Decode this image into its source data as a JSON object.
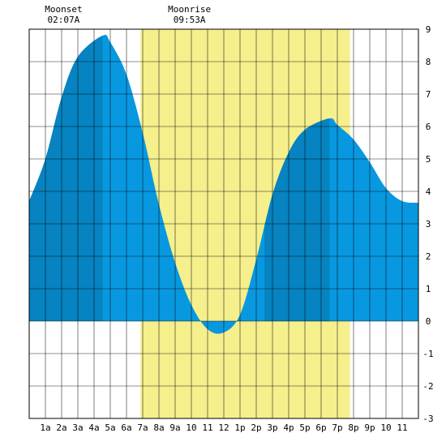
{
  "chart_data": {
    "type": "area",
    "title": "",
    "xlabel": "",
    "ylabel": "",
    "x_ticks": [
      "1a",
      "2a",
      "3a",
      "4a",
      "5a",
      "6a",
      "7a",
      "8a",
      "9a",
      "10",
      "11",
      "12",
      "1p",
      "2p",
      "3p",
      "4p",
      "5p",
      "6p",
      "7p",
      "8p",
      "9p",
      "10",
      "11"
    ],
    "xlim": [
      0,
      24
    ],
    "ylim": [
      -3,
      9
    ],
    "y_ticks": [
      9,
      8,
      7,
      6,
      5,
      4,
      3,
      2,
      1,
      0,
      -1,
      -2,
      -3
    ],
    "grid": true,
    "daylight": {
      "start_hour": 6.87,
      "end_hour": 19.78,
      "color": "#f5ef8c"
    },
    "tide_series": {
      "name": "",
      "colors": {
        "fill": "#0898e0",
        "shaded": "#0683c0"
      },
      "x": [
        0,
        1,
        2,
        3,
        4.52,
        5,
        6,
        7,
        8,
        9,
        10,
        11,
        12,
        13,
        14,
        15,
        16,
        17,
        18.52,
        19,
        20,
        21,
        22,
        23,
        24
      ],
      "y": [
        3.7,
        5.0,
        6.9,
        8.15,
        8.8,
        8.6,
        7.6,
        5.8,
        3.6,
        1.8,
        0.5,
        -0.25,
        -0.35,
        0.2,
        1.9,
        3.9,
        5.2,
        5.9,
        6.25,
        6.05,
        5.6,
        4.9,
        4.1,
        3.7,
        3.65
      ],
      "shaded_ranges": [
        [
          0,
          4.52
        ],
        [
          14.5,
          18.52
        ]
      ]
    },
    "annotations": [
      {
        "label": "Moonset",
        "time": "02:07A",
        "hour": 2.12
      },
      {
        "label": "Moonrise",
        "time": "09:53A",
        "hour": 9.88
      }
    ]
  }
}
